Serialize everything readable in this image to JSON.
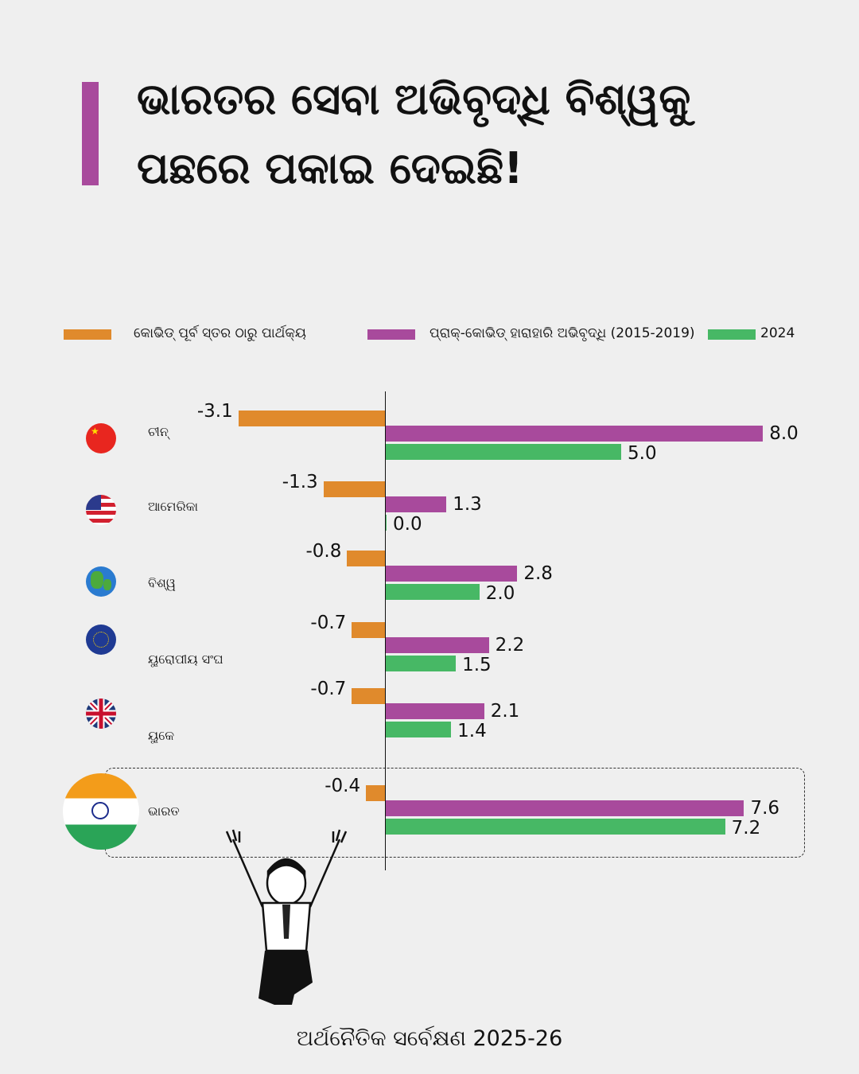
{
  "title": {
    "line1": "ଭାରତର ସେବା ଅଭିବୃଦ୍ଧି ବିଶ୍ୱକୁ",
    "line2": "ପଛରେ ପକାଇ ଦେଇଛି!"
  },
  "footer": "ଅର୍ଥନୈତିକ ସର୍ବେକ୍ଷଣ 2025-26",
  "colors": {
    "accent": "#a84a9c",
    "orange": "#e08a2c",
    "purple": "#a84a9c",
    "green": "#47b865"
  },
  "chart_data": {
    "type": "bar",
    "orientation": "horizontal",
    "categories": [
      "ଚୀନ୍",
      "ଆମେରିକା",
      "ବିଶ୍ୱ",
      "ୟୁରୋପୀୟ ସଂଘ",
      "ୟୁକେ",
      "ଭାରତ"
    ],
    "flags": [
      "china-flag",
      "usa-flag",
      "globe",
      "eu-flag",
      "uk-flag",
      "india-flag"
    ],
    "legend_position": "top",
    "series": [
      {
        "name": "କୋଭିଡ୍ ପୂର୍ବ ସ୍ତର ଠାରୁ ପାର୍ଥକ୍ୟ",
        "color": "#e08a2c",
        "values": [
          -3.1,
          -1.3,
          -0.8,
          -0.7,
          -0.7,
          -0.4
        ],
        "labels": [
          "-3.1",
          "-1.3",
          "-0.8",
          "-0.7",
          "-0.7",
          "-0.4"
        ]
      },
      {
        "name": "ପ୍ରାକ୍-କୋଭିଡ୍ ହାରାହାରି ଅଭିବୃଦ୍ଧି (2015-2019)",
        "color": "#a84a9c",
        "values": [
          8.0,
          1.3,
          2.8,
          2.2,
          2.1,
          7.6
        ],
        "labels": [
          "8.0",
          "1.3",
          "2.8",
          "2.2",
          "2.1",
          "7.6"
        ]
      },
      {
        "name": "2024",
        "color": "#47b865",
        "values": [
          5.0,
          0.0,
          2.0,
          1.5,
          1.4,
          7.2
        ],
        "labels": [
          "5.0",
          "0.0",
          "2.0",
          "1.5",
          "1.4",
          "7.2"
        ]
      }
    ],
    "highlight": "ଭାରତ"
  }
}
